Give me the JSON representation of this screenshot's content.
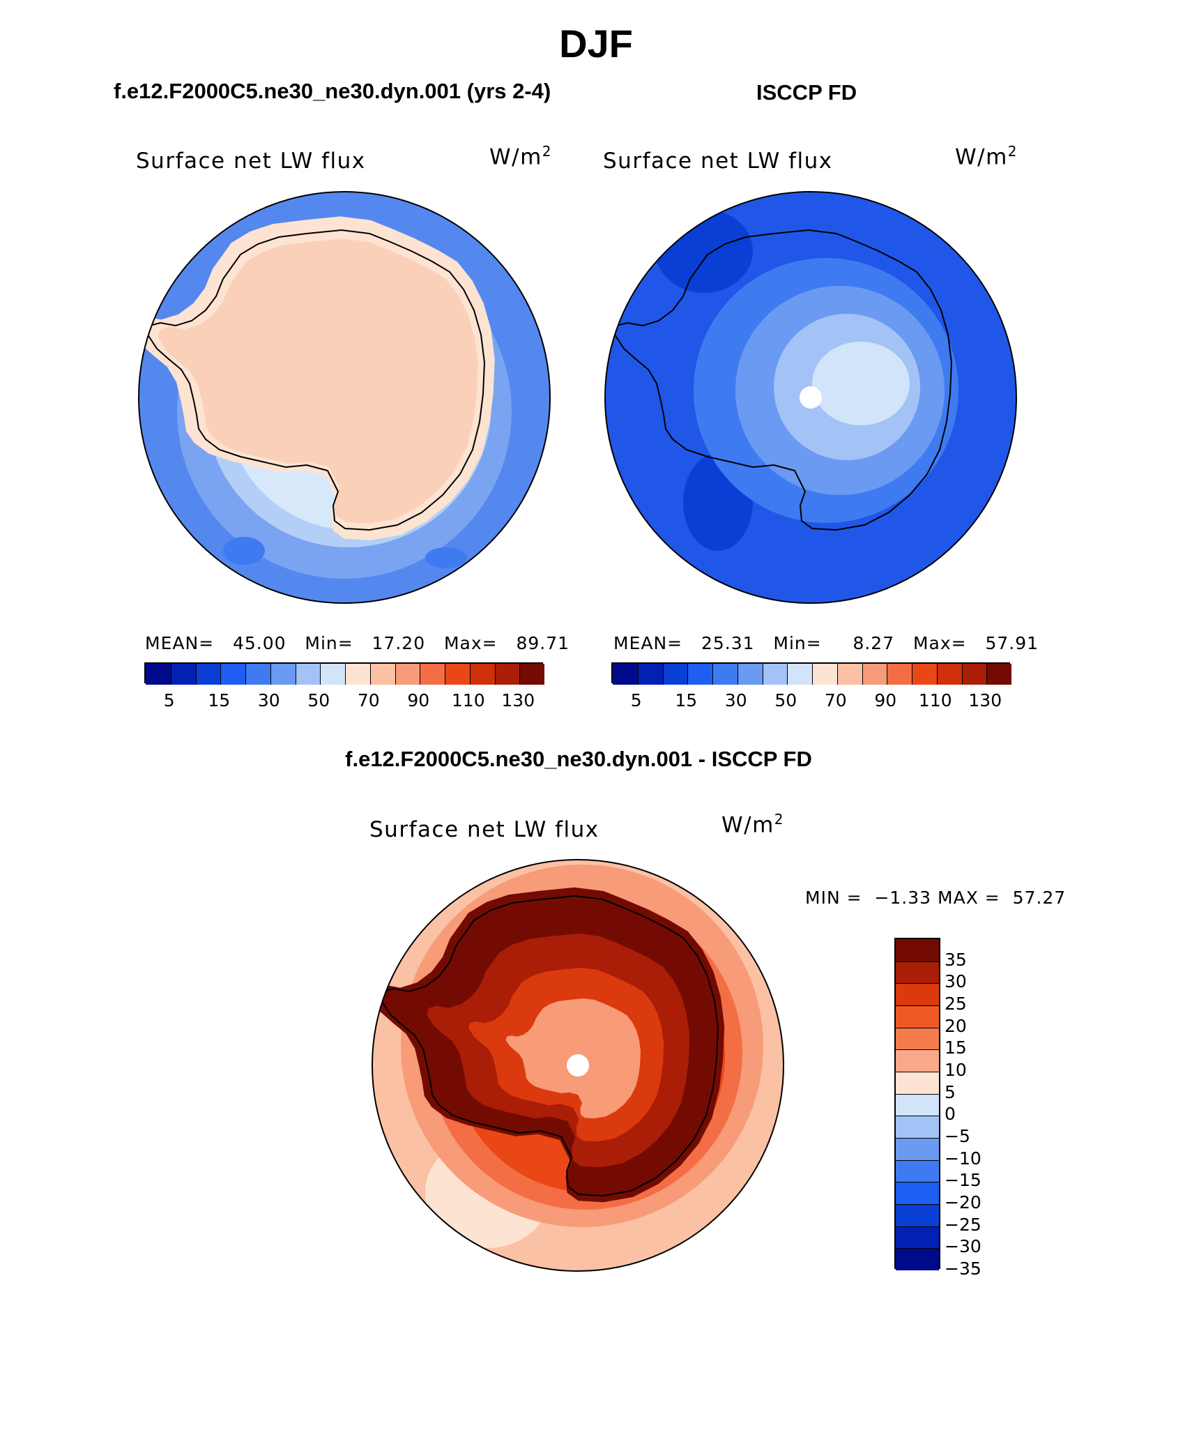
{
  "title": "DJF",
  "panels": {
    "model": {
      "case_title": "f.e12.F2000C5.ne30_ne30.dyn.001 (yrs 2-4)",
      "variable": "Surface net LW flux",
      "units_main": "W/m",
      "units_exp": "2",
      "stats": {
        "mean_label": "MEAN=",
        "mean": "45.00",
        "min_label": "Min=",
        "min": "17.20",
        "max_label": "Max=",
        "max": "89.71"
      }
    },
    "obs": {
      "case_title": "ISCCP FD",
      "variable": "Surface net LW flux",
      "units_main": "W/m",
      "units_exp": "2",
      "stats": {
        "mean_label": "MEAN=",
        "mean": "25.31",
        "min_label": "Min=",
        "min": "8.27",
        "max_label": "Max=",
        "max": "57.91"
      }
    },
    "diff": {
      "case_title": "f.e12.F2000C5.ne30_ne30.dyn.001 - ISCCP FD",
      "variable": "Surface net LW flux",
      "units_main": "W/m",
      "units_exp": "2",
      "stats": {
        "min_label": "MIN =",
        "min": "−1.33",
        "max_label": "MAX =",
        "max": "57.27"
      }
    }
  },
  "colorbar_field": {
    "colors": [
      "#000a8c",
      "#0320b4",
      "#0a3fd6",
      "#1f5ef2",
      "#3f7bf0",
      "#6a9af2",
      "#a3c2f6",
      "#d2e4fa",
      "#fde3d2",
      "#fbc1a5",
      "#f79b78",
      "#f36e45",
      "#ea4716",
      "#cf2f0a",
      "#aa1d06",
      "#730b02"
    ],
    "ticks": [
      "5",
      "15",
      "30",
      "50",
      "70",
      "90",
      "110",
      "130"
    ]
  },
  "colorbar_diff": {
    "colors": [
      "#730b02",
      "#aa1d06",
      "#db3a0e",
      "#ef5a24",
      "#f47c4c",
      "#f9a988",
      "#fde3d2",
      "#d2e4fa",
      "#a3c2f6",
      "#6a9af2",
      "#3f7bf0",
      "#1f5ef2",
      "#0a3fd6",
      "#0320b4",
      "#000a8c"
    ],
    "ticks": [
      "35",
      "30",
      "25",
      "20",
      "15",
      "10",
      "5",
      "0",
      "−5",
      "−10",
      "−15",
      "−20",
      "−25",
      "−30",
      "−35"
    ]
  }
}
